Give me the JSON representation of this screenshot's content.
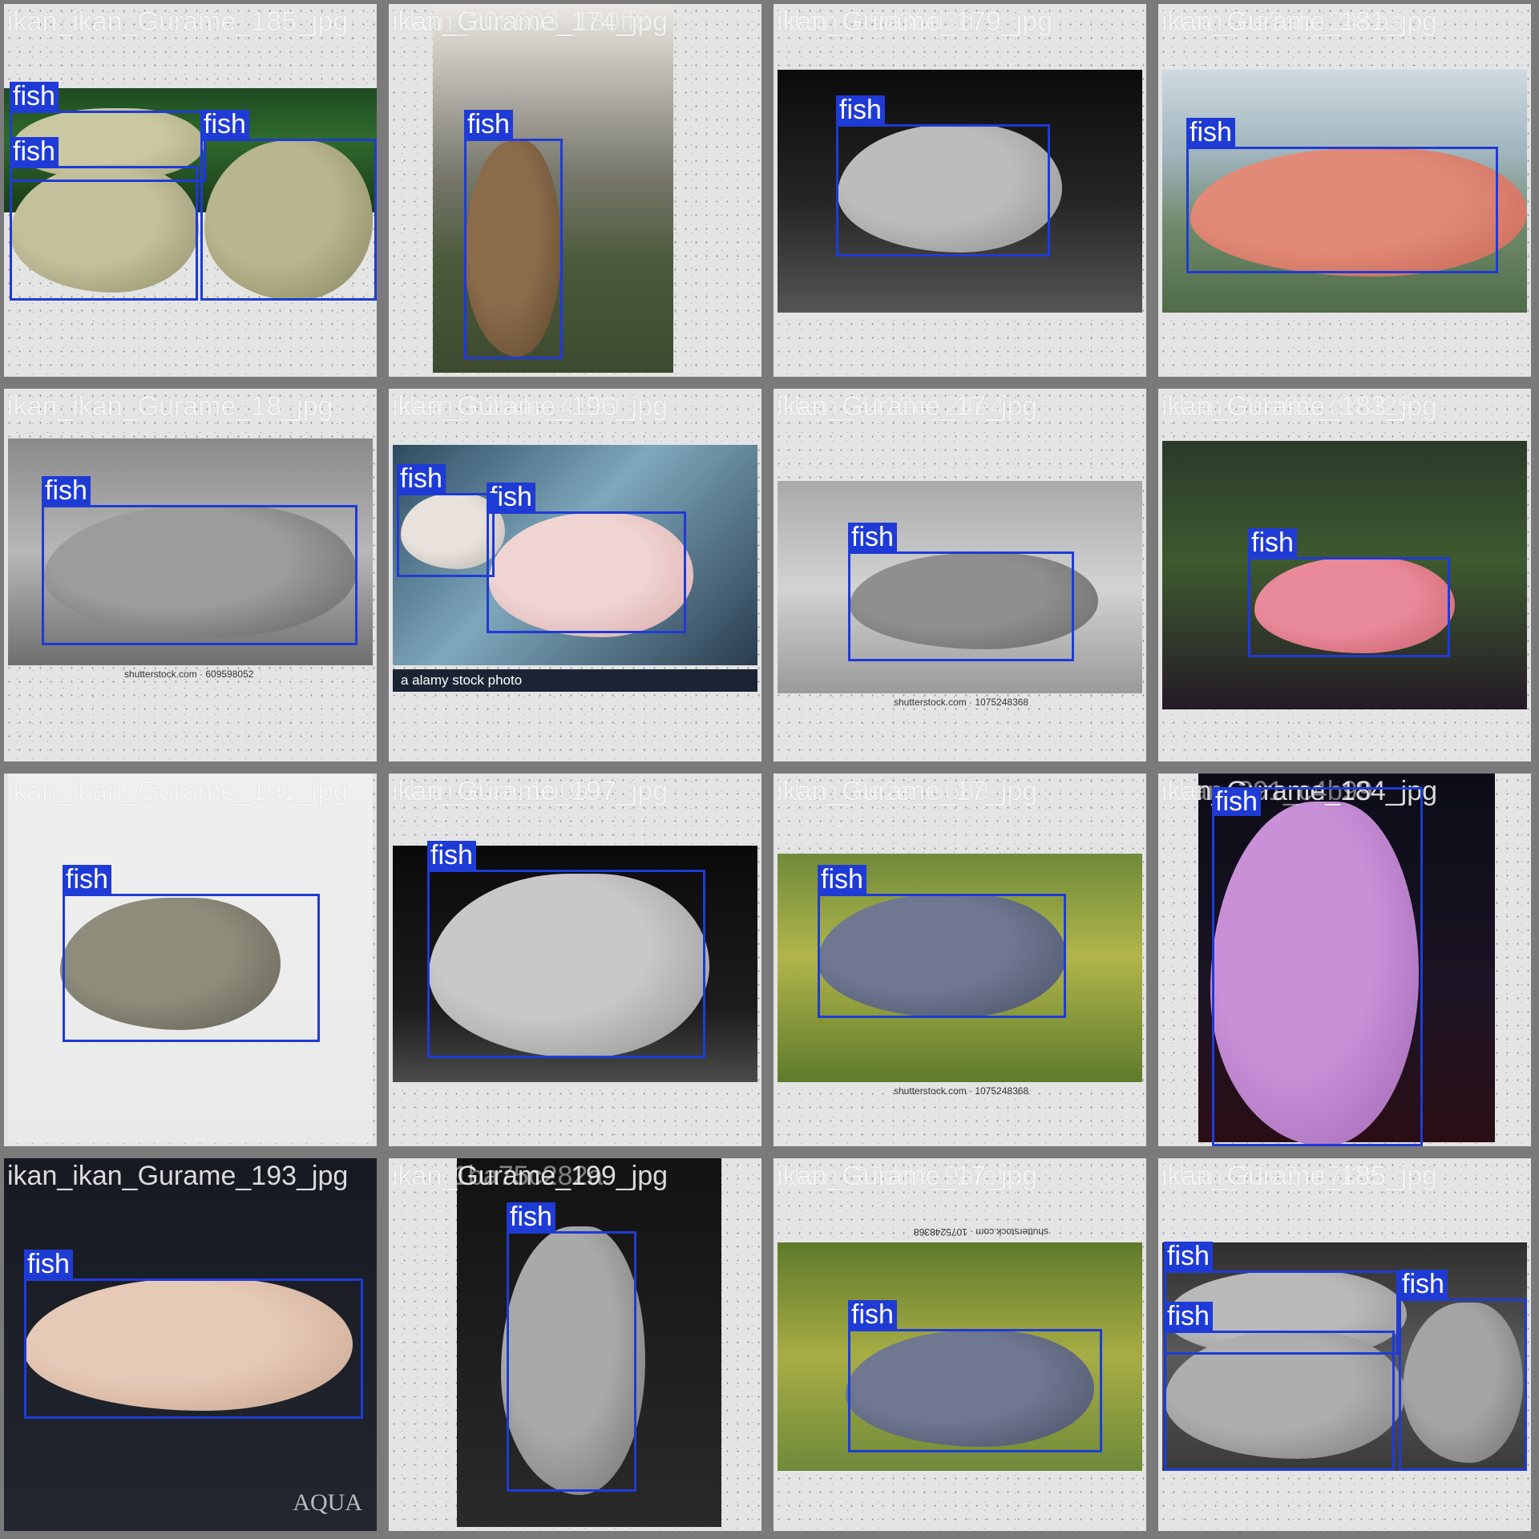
{
  "grid": {
    "columns": 4,
    "rows": 4
  },
  "colors": {
    "box": "#1f3bd6",
    "label_text": "#ffffff",
    "frame": "#7a7a7a",
    "padding": "#e4e4e4"
  },
  "tiles": [
    {
      "caption": "ikan_ikan_Gurame_185_jpg",
      "photo_bg": "linear-gradient(180deg,#1e4a22 0%,#2f6a2c 40%,#1a3a18 100%)",
      "fishes": [
        {
          "color": "#c9c8a0",
          "shade": "#9e9d76"
        },
        {
          "color": "#c3c19b",
          "shade": "#8f8e68"
        },
        {
          "color": "#b8b68e",
          "shade": "#878560"
        }
      ],
      "boxes": [
        {
          "label": "fish"
        },
        {
          "label": "fish"
        },
        {
          "label": "fish"
        }
      ]
    },
    {
      "caption": "ikan_Gurame_174_jpg",
      "overlay_caption": "ikan_305603_180ff8",
      "photo_bg": "linear-gradient(180deg,#ece9e4 0%,#7b7a6f 45%,#4a5a3a 70%,#3e4a30 100%)",
      "fishes": [
        {
          "color": "#8a6b4a",
          "shade": "#5c452e"
        }
      ],
      "boxes": [
        {
          "label": "fish"
        }
      ]
    },
    {
      "caption": "ikan_Gurame_179_jpg",
      "overlay_caption": "ikan_05d38d3d",
      "photo_bg": "linear-gradient(180deg,#0b0b0b 0%,#262626 55%,#555 100%)",
      "fishes": [
        {
          "color": "#bcbcbc",
          "shade": "#8e8e8e"
        }
      ],
      "boxes": [
        {
          "label": "fish"
        }
      ]
    },
    {
      "caption": "ikan_Gurame_181_jpg",
      "overlay_caption": "ikan_0e3ab_24eaa",
      "photo_bg": "linear-gradient(180deg,#cfd9df 0%,#9fb4bd 35%,#6e8a6a 65%,#4f6c49 100%)",
      "fishes": [
        {
          "color": "#e28a78",
          "shade": "#c56553"
        }
      ],
      "boxes": [
        {
          "label": "fish"
        }
      ]
    },
    {
      "caption": "ikan_ikan_Gurame_18_jpg",
      "photo_bg": "linear-gradient(180deg,#8a8a8a 0%,#b7b7b7 50%,#6f6f6f 100%)",
      "fishes": [
        {
          "color": "#9c9c9c",
          "shade": "#5e5e5e"
        }
      ],
      "watermark": "shutterstock.com · 609598052",
      "boxes": [
        {
          "label": "fish"
        }
      ]
    },
    {
      "caption": "ikan_Gurame_196_jpg",
      "overlay_caption": "ikan_b2bde_4139",
      "photo_bg": "linear-gradient(135deg,#2d4a60 0%,#7ea7bc 45%,#2a3d4f 100%)",
      "fishes": [
        {
          "color": "#efd4d2",
          "shade": "#d7a8a7"
        },
        {
          "color": "#e8e1dc",
          "shade": "#b9b1ab"
        }
      ],
      "watermark": "a  alamy stock photo",
      "boxes": [
        {
          "label": "fish"
        },
        {
          "label": "fish"
        }
      ]
    },
    {
      "caption": "ikan_Gurame_17_jpg",
      "overlay_caption": "ikan_7412e_24e4",
      "photo_bg": "linear-gradient(180deg,#a9a9a9 0%,#d3d3d3 50%,#9a9a9a 100%)",
      "fishes": [
        {
          "color": "#8f8f8f",
          "shade": "#666"
        }
      ],
      "watermark": "shutterstock.com · 1075248368",
      "boxes": [
        {
          "label": "fish"
        }
      ]
    },
    {
      "caption": "ikan_Gurame_183_jpg",
      "overlay_caption": "ikan_70a62_d75f25",
      "photo_bg": "linear-gradient(180deg,#2b3a2a 0%,#3e5a2f 45%,#241a26 100%)",
      "fishes": [
        {
          "color": "#e98a9a",
          "shade": "#c9606f"
        }
      ],
      "boxes": [
        {
          "label": "fish"
        }
      ]
    },
    {
      "caption": "ikan_ikan_Gurame_191_jpg",
      "photo_bg": "linear-gradient(180deg,#efefef 0%,#e9e9e9 100%)",
      "fishes": [
        {
          "color": "#8e8d7c",
          "shade": "#5f5e50"
        }
      ],
      "boxes": [
        {
          "label": "fish"
        }
      ]
    },
    {
      "caption": "ikan_Gurame_197_jpg",
      "overlay_caption": "ikan_d3a_190a",
      "photo_bg": "linear-gradient(180deg,#0a0a0a 0%,#1d1d1d 70%,#4a4a4a 100%)",
      "fishes": [
        {
          "color": "#c8c8c8",
          "shade": "#8f8f8f"
        }
      ],
      "boxes": [
        {
          "label": "fish"
        }
      ]
    },
    {
      "caption": "ikan_Gurame_17_jpg",
      "overlay_caption": "ikan_8e2a_6688",
      "photo_bg": "linear-gradient(180deg,#6f8a3a 0%,#b0b64a 45%,#5f7a2c 100%)",
      "fishes": [
        {
          "color": "#6f7890",
          "shade": "#474f66"
        }
      ],
      "watermark": "shutterstock.com · 1075248368",
      "boxes": [
        {
          "label": "fish"
        }
      ]
    },
    {
      "caption": "ikan_Gurame_184_jpg",
      "overlay_caption": "ikan_391_c4b99",
      "photo_bg": "linear-gradient(180deg,#0c0c18 0%,#1c1424 60%,#2a0e14 100%)",
      "fishes": [
        {
          "color": "#c990d8",
          "shade": "#9e67b2"
        }
      ],
      "boxes": [
        {
          "label": "fish"
        }
      ]
    },
    {
      "caption": "ikan_ikan_Gurame_193_jpg",
      "photo_bg": "linear-gradient(180deg,#171a22 0%,#22262e 100%)",
      "fishes": [
        {
          "color": "#e6c9b6",
          "shade": "#c5a38d"
        }
      ],
      "watermark": "AQUA",
      "boxes": [
        {
          "label": "fish"
        }
      ]
    },
    {
      "caption": "ikan_Gurame_199_jpg",
      "overlay_caption": "1ba75c282a",
      "photo_bg": "linear-gradient(180deg,#121212 0%,#2a2a2a 100%)",
      "fishes": [
        {
          "color": "#a9a9a9",
          "shade": "#6f6f6f"
        }
      ],
      "boxes": [
        {
          "label": "fish"
        }
      ]
    },
    {
      "caption": "ikan_Gurame_17_jpg",
      "overlay_caption": "ikan_27dd4_9afeb",
      "photo_bg": "linear-gradient(180deg,#5f7a2c 0%,#a7ad44 50%,#6f8a3a 100%)",
      "fishes": [
        {
          "color": "#6f7890",
          "shade": "#474f66"
        }
      ],
      "watermark": "shutterstock.com · 1075248368",
      "boxes": [
        {
          "label": "fish"
        }
      ]
    },
    {
      "caption": "ikan_Gurame_185_jpg",
      "overlay_caption": "ikan_71e2_c7f2c",
      "photo_bg": "linear-gradient(180deg,#2e2e2e 0%,#5a5a5a 50%,#3a3a3a 100%)",
      "fishes": [
        {
          "color": "#b9b9b9",
          "shade": "#8a8a8a"
        },
        {
          "color": "#aeaeae",
          "shade": "#7b7b7b"
        },
        {
          "color": "#a4a4a4",
          "shade": "#707070"
        }
      ],
      "boxes": [
        {
          "label": "fish"
        },
        {
          "label": "fish"
        },
        {
          "label": "fish"
        }
      ]
    }
  ]
}
